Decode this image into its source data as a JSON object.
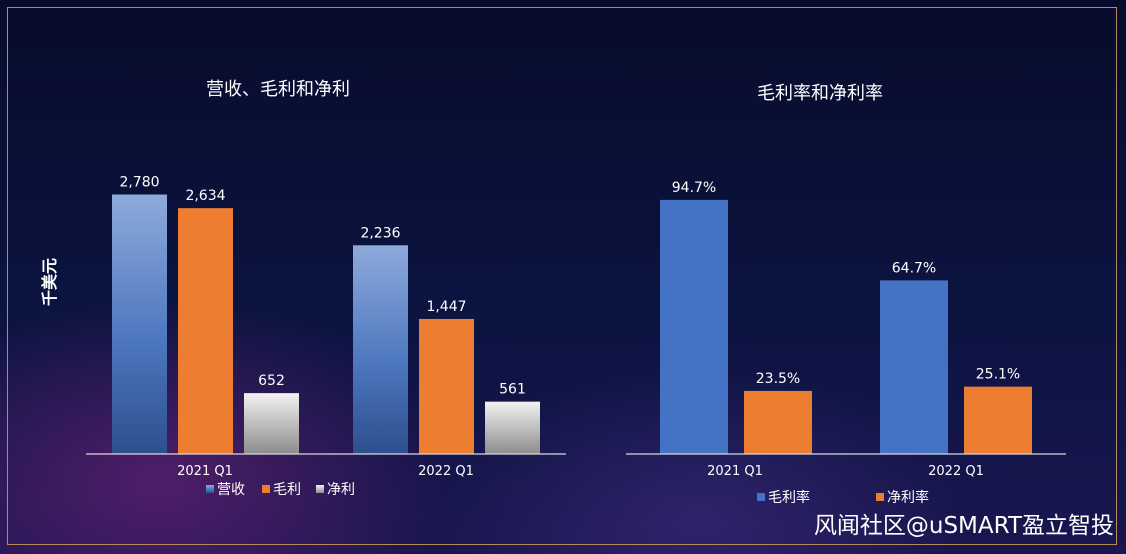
{
  "watermark": "风闻社区@uSMART盈立智投",
  "chart_data": [
    {
      "type": "bar",
      "title": "营收、毛利和净利",
      "ylabel": "千美元",
      "categories": [
        "2021 Q1",
        "2022 Q1"
      ],
      "series": [
        {
          "name": "营收",
          "values": [
            2780,
            2236
          ],
          "labels": [
            "2,780",
            "2,236"
          ],
          "color": "#4472c4"
        },
        {
          "name": "毛利",
          "values": [
            2634,
            1447
          ],
          "labels": [
            "2,634",
            "1,447"
          ],
          "color": "#ed7d31"
        },
        {
          "name": "净利",
          "values": [
            652,
            561
          ],
          "labels": [
            "652",
            "561"
          ],
          "color": "#a5a5a5"
        }
      ],
      "ylim": [
        0,
        3450
      ],
      "legend": "bottom"
    },
    {
      "type": "bar",
      "title": "毛利率和净利率",
      "categories": [
        "2021 Q1",
        "2022 Q1"
      ],
      "series": [
        {
          "name": "毛利率",
          "values": [
            94.7,
            64.7
          ],
          "labels": [
            "94.7%",
            "64.7%"
          ],
          "color": "#4472c4"
        },
        {
          "name": "净利率",
          "values": [
            23.5,
            25.1
          ],
          "labels": [
            "23.5%",
            "25.1%"
          ],
          "color": "#ed7d31"
        }
      ],
      "ylim": [
        0,
        120
      ],
      "legend": "bottom"
    }
  ]
}
